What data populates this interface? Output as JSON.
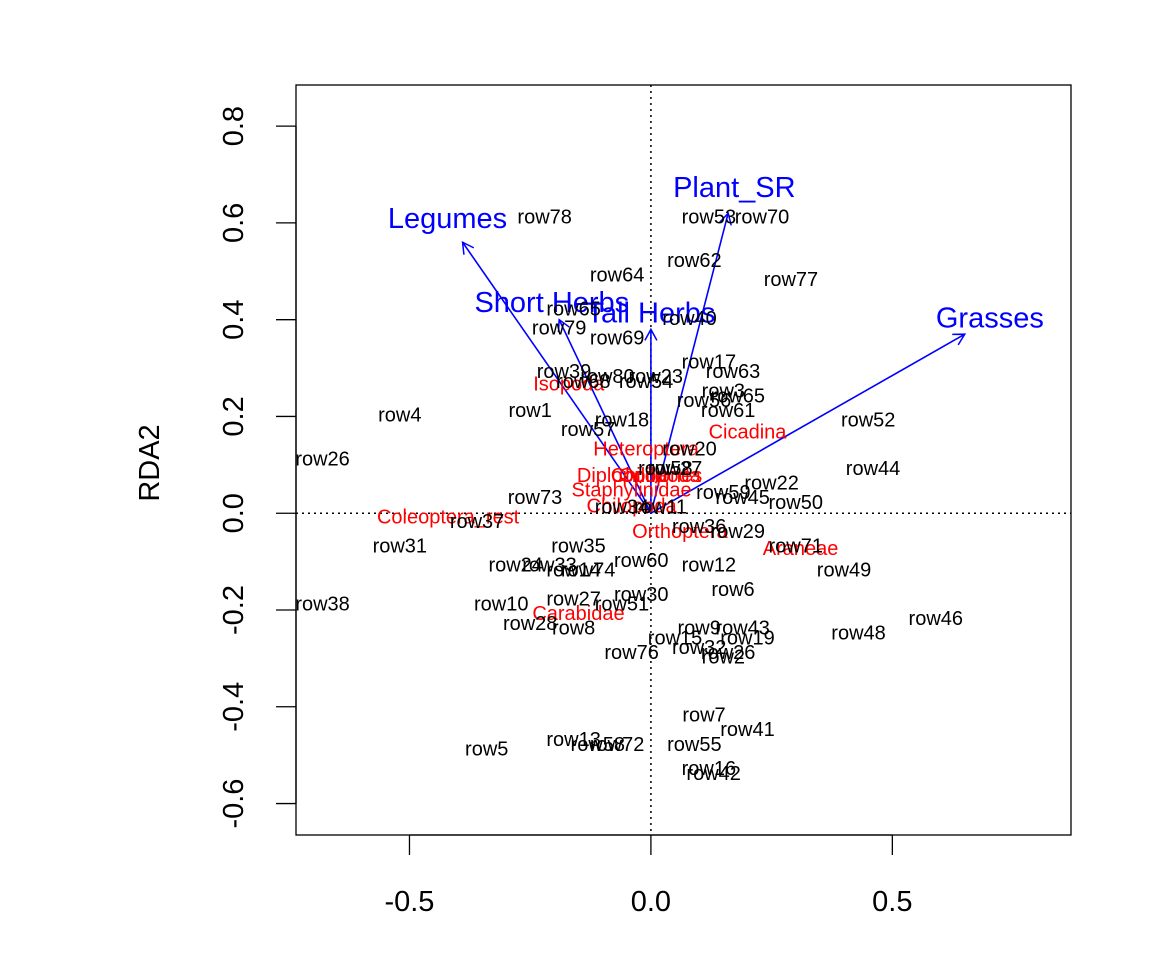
{
  "chart_data": {
    "type": "scatter",
    "title": "",
    "xlabel": "",
    "ylabel": "RDA2",
    "xlim": [
      -0.735,
      0.87
    ],
    "ylim": [
      -0.665,
      0.885
    ],
    "x_ticks": [
      {
        "value": -0.5,
        "label": "-0.5"
      },
      {
        "value": 0.0,
        "label": "0.0"
      },
      {
        "value": 0.5,
        "label": "0.5"
      }
    ],
    "y_ticks": [
      {
        "value": -0.6,
        "label": "-0.6"
      },
      {
        "value": -0.4,
        "label": "-0.4"
      },
      {
        "value": -0.2,
        "label": "-0.2"
      },
      {
        "value": 0.0,
        "label": "0.0"
      },
      {
        "value": 0.2,
        "label": "0.2"
      },
      {
        "value": 0.4,
        "label": "0.4"
      },
      {
        "value": 0.6,
        "label": "0.6"
      },
      {
        "value": 0.8,
        "label": "0.8"
      }
    ],
    "grid": false,
    "reference_lines": {
      "x": 0,
      "y": 0,
      "style": "dotted"
    },
    "colors": {
      "sites": "#000000",
      "species": "#ff0000",
      "arrows": "#0000ff",
      "axes": "#000000"
    },
    "sites": [
      {
        "label": "row78",
        "x": -0.22,
        "y": 0.61
      },
      {
        "label": "row53",
        "x": 0.12,
        "y": 0.61
      },
      {
        "label": "row70",
        "x": 0.23,
        "y": 0.61
      },
      {
        "label": "row62",
        "x": 0.09,
        "y": 0.52
      },
      {
        "label": "row64",
        "x": -0.07,
        "y": 0.49
      },
      {
        "label": "row77",
        "x": 0.29,
        "y": 0.48
      },
      {
        "label": "row65",
        "x": -0.16,
        "y": 0.42
      },
      {
        "label": "row40",
        "x": 0.08,
        "y": 0.4
      },
      {
        "label": "row79",
        "x": -0.19,
        "y": 0.38
      },
      {
        "label": "row69",
        "x": -0.07,
        "y": 0.36
      },
      {
        "label": "row17",
        "x": 0.12,
        "y": 0.31
      },
      {
        "label": "row63",
        "x": 0.17,
        "y": 0.29
      },
      {
        "label": "row39",
        "x": -0.18,
        "y": 0.29
      },
      {
        "label": "row23",
        "x": 0.01,
        "y": 0.28
      },
      {
        "label": "row80",
        "x": -0.09,
        "y": 0.28
      },
      {
        "label": "row68",
        "x": -0.14,
        "y": 0.27
      },
      {
        "label": "row54",
        "x": -0.01,
        "y": 0.27
      },
      {
        "label": "row3",
        "x": 0.15,
        "y": 0.25
      },
      {
        "label": "row65",
        "x": 0.18,
        "y": 0.24
      },
      {
        "label": "row56",
        "x": 0.11,
        "y": 0.23
      },
      {
        "label": "row4",
        "x": -0.52,
        "y": 0.2
      },
      {
        "label": "row1",
        "x": -0.25,
        "y": 0.21
      },
      {
        "label": "row61",
        "x": 0.16,
        "y": 0.21
      },
      {
        "label": "row52",
        "x": 0.45,
        "y": 0.19
      },
      {
        "label": "row18",
        "x": -0.06,
        "y": 0.19
      },
      {
        "label": "row57",
        "x": -0.13,
        "y": 0.17
      },
      {
        "label": "row26",
        "x": -0.68,
        "y": 0.11
      },
      {
        "label": "row20",
        "x": 0.08,
        "y": 0.13
      },
      {
        "label": "row58",
        "x": 0.03,
        "y": 0.09
      },
      {
        "label": "row27",
        "x": 0.05,
        "y": 0.09
      },
      {
        "label": "row44",
        "x": 0.46,
        "y": 0.09
      },
      {
        "label": "row22",
        "x": 0.25,
        "y": 0.06
      },
      {
        "label": "row73",
        "x": -0.24,
        "y": 0.03
      },
      {
        "label": "row59",
        "x": 0.15,
        "y": 0.04
      },
      {
        "label": "row45",
        "x": 0.19,
        "y": 0.03
      },
      {
        "label": "row50",
        "x": 0.3,
        "y": 0.02
      },
      {
        "label": "row34",
        "x": -0.06,
        "y": 0.01
      },
      {
        "label": "row11",
        "x": 0.02,
        "y": 0.01
      },
      {
        "label": "row37",
        "x": -0.36,
        "y": -0.02
      },
      {
        "label": "row36",
        "x": 0.1,
        "y": -0.03
      },
      {
        "label": "row29",
        "x": 0.18,
        "y": -0.04
      },
      {
        "label": "row31",
        "x": -0.52,
        "y": -0.07
      },
      {
        "label": "row35",
        "x": -0.15,
        "y": -0.07
      },
      {
        "label": "row71",
        "x": 0.3,
        "y": -0.07
      },
      {
        "label": "row60",
        "x": -0.02,
        "y": -0.1
      },
      {
        "label": "row24",
        "x": -0.28,
        "y": -0.11
      },
      {
        "label": "row33",
        "x": -0.21,
        "y": -0.11
      },
      {
        "label": "row14",
        "x": -0.16,
        "y": -0.12
      },
      {
        "label": "row74",
        "x": -0.13,
        "y": -0.12
      },
      {
        "label": "row12",
        "x": 0.12,
        "y": -0.11
      },
      {
        "label": "row49",
        "x": 0.4,
        "y": -0.12
      },
      {
        "label": "row6",
        "x": 0.17,
        "y": -0.16
      },
      {
        "label": "row30",
        "x": -0.02,
        "y": -0.17
      },
      {
        "label": "row38",
        "x": -0.68,
        "y": -0.19
      },
      {
        "label": "row10",
        "x": -0.31,
        "y": -0.19
      },
      {
        "label": "row27",
        "x": -0.16,
        "y": -0.18
      },
      {
        "label": "row51",
        "x": -0.06,
        "y": -0.19
      },
      {
        "label": "row46",
        "x": 0.59,
        "y": -0.22
      },
      {
        "label": "row28",
        "x": -0.25,
        "y": -0.23
      },
      {
        "label": "row8",
        "x": -0.16,
        "y": -0.24
      },
      {
        "label": "row9",
        "x": 0.1,
        "y": -0.24
      },
      {
        "label": "row43",
        "x": 0.19,
        "y": -0.24
      },
      {
        "label": "row48",
        "x": 0.43,
        "y": -0.25
      },
      {
        "label": "row15",
        "x": 0.05,
        "y": -0.26
      },
      {
        "label": "row19",
        "x": 0.2,
        "y": -0.26
      },
      {
        "label": "row76",
        "x": -0.04,
        "y": -0.29
      },
      {
        "label": "row32",
        "x": 0.1,
        "y": -0.28
      },
      {
        "label": "row26",
        "x": 0.16,
        "y": -0.29
      },
      {
        "label": "row2",
        "x": 0.15,
        "y": -0.3
      },
      {
        "label": "row7",
        "x": 0.11,
        "y": -0.42
      },
      {
        "label": "row41",
        "x": 0.2,
        "y": -0.45
      },
      {
        "label": "row13",
        "x": -0.16,
        "y": -0.47
      },
      {
        "label": "row58",
        "x": -0.11,
        "y": -0.48
      },
      {
        "label": "row72",
        "x": -0.07,
        "y": -0.48
      },
      {
        "label": "row55",
        "x": 0.09,
        "y": -0.48
      },
      {
        "label": "row5",
        "x": -0.34,
        "y": -0.49
      },
      {
        "label": "row16",
        "x": 0.12,
        "y": -0.53
      },
      {
        "label": "row42",
        "x": 0.13,
        "y": -0.54
      }
    ],
    "species": [
      {
        "label": "Isopoda",
        "x": -0.17,
        "y": 0.265
      },
      {
        "label": "Cicadina",
        "x": 0.2,
        "y": 0.165
      },
      {
        "label": "Heteroptera",
        "x": -0.01,
        "y": 0.13
      },
      {
        "label": "Diplopoda",
        "x": -0.06,
        "y": 0.075
      },
      {
        "label": "Chilopoda",
        "x": 0.01,
        "y": 0.075
      },
      {
        "label": "Staphylinidae",
        "x": -0.04,
        "y": 0.045
      },
      {
        "label": "Opiliones",
        "x": 0.02,
        "y": 0.075
      },
      {
        "label": "Orthoptera",
        "x": 0.06,
        "y": -0.04
      },
      {
        "label": "Chilopoda",
        "x": -0.04,
        "y": 0.012
      },
      {
        "label": "Coleoptera_rest",
        "x": -0.42,
        "y": -0.01
      },
      {
        "label": "Araneae",
        "x": 0.31,
        "y": -0.075
      },
      {
        "label": "Carabidae",
        "x": -0.15,
        "y": -0.21
      }
    ],
    "arrows": [
      {
        "label": "Plant_SR",
        "x": 0.16,
        "y": 0.62
      },
      {
        "label": "Legumes",
        "x": -0.39,
        "y": 0.56
      },
      {
        "label": "Grasses",
        "x": 0.65,
        "y": 0.37
      },
      {
        "label": "Short Herbs",
        "x": -0.19,
        "y": 0.4
      },
      {
        "label": "Tall Herbs",
        "x": 0.0,
        "y": 0.38
      }
    ]
  }
}
